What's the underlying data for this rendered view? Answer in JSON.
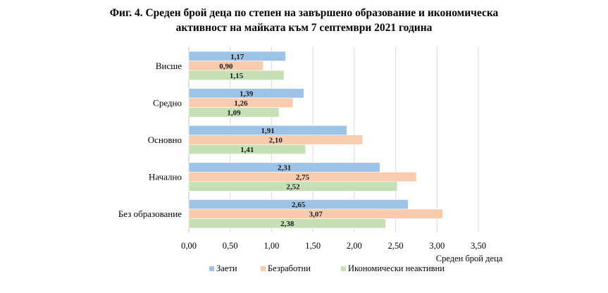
{
  "title_line1": "Фиг. 4. Среден брой деца по степен на завършено образование и икономическа",
  "title_line2": "активност на майката към 7 септември 2021 година",
  "chart_data": {
    "type": "bar",
    "orientation": "horizontal",
    "title": "Фиг. 4. Среден брой деца по степен на завършено образование и икономическа активност на майката към 7 септември 2021 година",
    "categories": [
      "Висше",
      "Средно",
      "Основно",
      "Начално",
      "Без образование"
    ],
    "series": [
      {
        "name": "Заети",
        "color": "#9dc3e6",
        "values": [
          1.17,
          1.39,
          1.91,
          2.31,
          2.65
        ],
        "labels": [
          "1,17",
          "1,39",
          "1,91",
          "2,31",
          "2,65"
        ]
      },
      {
        "name": "Безработни",
        "color": "#f8cbad",
        "values": [
          0.9,
          1.26,
          2.1,
          2.75,
          3.07
        ],
        "labels": [
          "0,90",
          "1,26",
          "2,10",
          "2,75",
          "3,07"
        ]
      },
      {
        "name": "Икономически неактивни",
        "color": "#c5e0b4",
        "values": [
          1.15,
          1.09,
          1.41,
          2.52,
          2.38
        ],
        "labels": [
          "1,15",
          "1,09",
          "1,41",
          "2,52",
          "2,38"
        ]
      }
    ],
    "xlim": [
      0,
      3.5
    ],
    "xticks": [
      0,
      0.5,
      1,
      1.5,
      2,
      2.5,
      3,
      3.5
    ],
    "xtick_labels": [
      "0,00",
      "0,50",
      "1,00",
      "1,50",
      "2,00",
      "2,50",
      "3,00",
      "3,50"
    ],
    "xlabel": "Среден брой деца",
    "ylabel": "",
    "grid": "vertical",
    "legend": "bottom"
  }
}
